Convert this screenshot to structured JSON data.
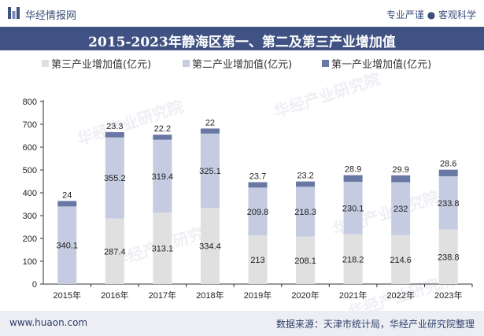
{
  "header": {
    "brand": "华经情报网",
    "tagline": "专业严谨 ● 客观科学"
  },
  "footer": {
    "website": "www.huaon.com",
    "source": "数据来源：天津市统计局，华经产业研究院整理"
  },
  "watermark": {
    "text": "华经产业研究院",
    "url": "www.huaon.com"
  },
  "colors": {
    "tertiary": "#e0e0e0",
    "secondary": "#c5cbe0",
    "primary": "#6877a3",
    "title_bar": "#405283"
  },
  "chart_data": {
    "type": "bar",
    "stacked": true,
    "title": "2015-2023年静海区第一、第二及第三产业增加值",
    "categories": [
      "2015年",
      "2016年",
      "2017年",
      "2018年",
      "2019年",
      "2020年",
      "2021年",
      "2022年",
      "2023年"
    ],
    "series": [
      {
        "name": "第三产业增加值(亿元)",
        "values": [
          0,
          287.4,
          313.1,
          334.4,
          213,
          208.1,
          218.2,
          214.6,
          238.8
        ]
      },
      {
        "name": "第二产业增加值(亿元)",
        "values": [
          340.1,
          355.2,
          319.4,
          325.1,
          209.8,
          218.3,
          230.1,
          232,
          233.8
        ]
      },
      {
        "name": "第一产业增加值(亿元)",
        "values": [
          24,
          23.3,
          22.2,
          22,
          23.7,
          23.2,
          28.9,
          29.9,
          28.6
        ]
      }
    ],
    "labels": {
      "tertiary": [
        "",
        "287.4",
        "313.1",
        "334.4",
        "213",
        "208.1",
        "218.2",
        "214.6",
        "238.8"
      ],
      "secondary": [
        "340.1",
        "355.2",
        "319.4",
        "325.1",
        "209.8",
        "218.3",
        "230.1",
        "232",
        "233.8"
      ],
      "primary": [
        "24",
        "23.3",
        "22.2",
        "22",
        "23.7",
        "23.2",
        "28.9",
        "29.9",
        "28.6"
      ]
    },
    "ylim": [
      0,
      800
    ],
    "yticks": [
      "0",
      "100",
      "200",
      "300",
      "400",
      "500",
      "600",
      "700",
      "800"
    ],
    "legend_position": "top"
  }
}
